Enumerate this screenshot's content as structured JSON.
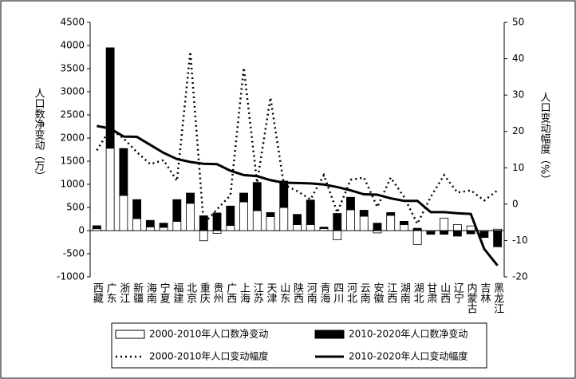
{
  "chart_data": {
    "type": "bar",
    "y_label": "人口数净变动（万）",
    "y2_label": "人口变动幅度（%）",
    "categories": [
      "西藏",
      "广东",
      "浙江",
      "新疆",
      "海南",
      "宁夏",
      "福建",
      "北京",
      "重庆",
      "贵州",
      "广西",
      "上海",
      "江苏",
      "天津",
      "山东",
      "陕西",
      "河南",
      "青海",
      "四川",
      "河北",
      "云南",
      "安徽",
      "江西",
      "湖南",
      "湖北",
      "甘肃",
      "山西",
      "辽宁",
      "内蒙古",
      "吉林",
      "黑龙江"
    ],
    "ylim": [
      -1000,
      4500
    ],
    "yticks": [
      -1000,
      -500,
      0,
      500,
      1000,
      1500,
      2000,
      2500,
      3000,
      3500,
      4000,
      4500
    ],
    "y2lim": [
      -20,
      50
    ],
    "y2ticks": [
      -20,
      -10,
      0,
      10,
      20,
      30,
      40,
      50
    ],
    "series": [
      {
        "name": "2000-2010年人口数净变动",
        "kind": "bar",
        "color": "#ffffff",
        "values": [
          40,
          1780,
          760,
          260,
          80,
          70,
          200,
          590,
          -220,
          -60,
          110,
          620,
          430,
          300,
          500,
          130,
          130,
          45,
          -200,
          450,
          310,
          -50,
          330,
          130,
          -300,
          -20,
          270,
          130,
          100,
          -20,
          30
        ]
      },
      {
        "name": "2010-2020年人口数净变动",
        "kind": "bar",
        "color": "#000000",
        "values": [
          65,
          2170,
          1014,
          410,
          140,
          90,
          470,
          220,
          320,
          380,
          420,
          190,
          610,
          90,
          570,
          220,
          530,
          30,
          370,
          270,
          130,
          160,
          60,
          70,
          50,
          -60,
          -80,
          -120,
          -70,
          -130,
          -350
        ]
      },
      {
        "name": "2000-2010年人口变动幅度",
        "kind": "line",
        "dash": true,
        "axis": "y2",
        "color": "#000000",
        "values": [
          14.8,
          20.7,
          18.1,
          14.3,
          11.0,
          12.1,
          6.4,
          41.9,
          -5.4,
          -1.4,
          2.4,
          37.5,
          5.9,
          29.3,
          5.4,
          3.6,
          1.3,
          8.0,
          -2.3,
          6.7,
          7.3,
          -0.8,
          7.3,
          2.0,
          -5.4,
          2.0,
          8.0,
          3.2,
          3.8,
          1.0,
          3.8
        ]
      },
      {
        "name": "2010-2020年人口变动幅度",
        "kind": "line",
        "dash": false,
        "axis": "y2",
        "color": "#000000",
        "values": [
          21.5,
          20.8,
          18.6,
          18.5,
          16.3,
          14.1,
          12.4,
          11.6,
          11.1,
          11.0,
          9.2,
          8.0,
          7.7,
          6.6,
          5.9,
          5.8,
          5.7,
          5.4,
          4.7,
          3.8,
          2.7,
          2.6,
          1.6,
          0.9,
          0.9,
          -2.2,
          -2.2,
          -2.5,
          -2.7,
          -12.3,
          -16.9
        ]
      }
    ]
  }
}
